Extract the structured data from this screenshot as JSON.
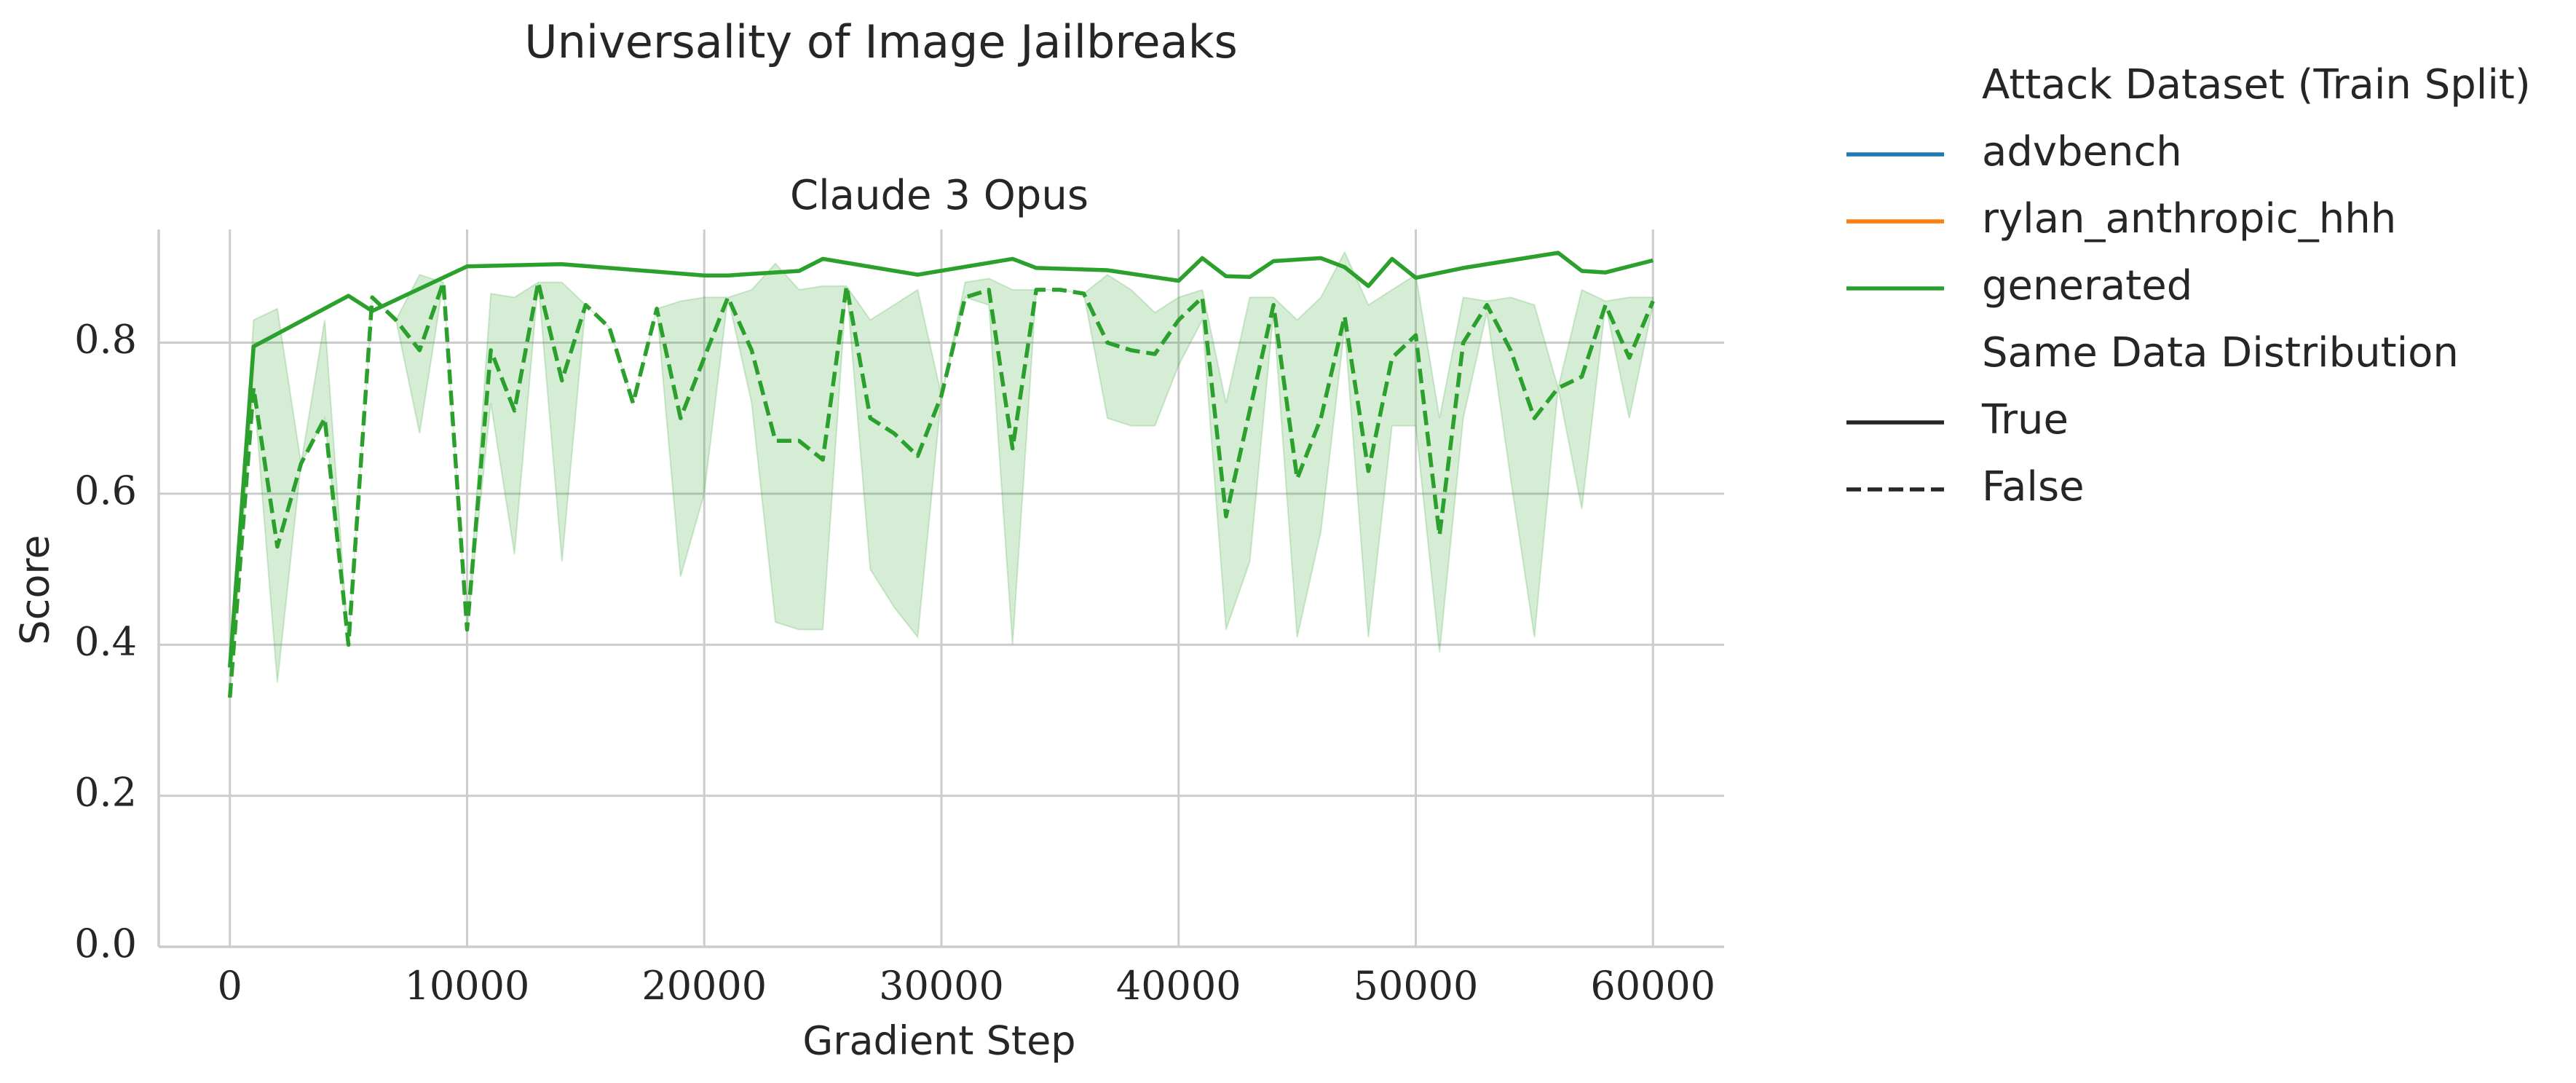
{
  "suptitle": "Universality of Image Jailbreaks",
  "chart_data": {
    "type": "line",
    "title": "Claude 3 Opus",
    "xlabel": "Gradient Step",
    "ylabel": "Score",
    "xlim": [
      -3000,
      63000
    ],
    "ylim": [
      0,
      0.95
    ],
    "xticks": [
      0,
      10000,
      20000,
      30000,
      40000,
      50000,
      60000
    ],
    "xtick_labels": [
      "0",
      "10000",
      "20000",
      "30000",
      "40000",
      "50000",
      "60000"
    ],
    "yticks": [
      0.0,
      0.2,
      0.4,
      0.6,
      0.8
    ],
    "ytick_labels": [
      "0.0",
      "0.2",
      "0.4",
      "0.6",
      "0.8"
    ],
    "grid": true,
    "legend_position": "outside-right",
    "legend": {
      "hue_title": "Attack Dataset (Train Split)",
      "hue_entries": [
        {
          "label": "advbench",
          "color": "#1f77b4"
        },
        {
          "label": "rylan_anthropic_hhh",
          "color": "#ff7f0e"
        },
        {
          "label": "generated",
          "color": "#2ca02c"
        }
      ],
      "style_title": "Same Data Distribution",
      "style_entries": [
        {
          "label": "True",
          "dash": "solid"
        },
        {
          "label": "False",
          "dash": "dashed"
        }
      ]
    },
    "series": [
      {
        "dataset": "generated",
        "same_distribution": "True",
        "color": "#2ca02c",
        "x": [
          0,
          1000,
          5000,
          6000,
          10000,
          14000,
          20000,
          21000,
          24000,
          25000,
          29000,
          33000,
          34000,
          37000,
          40000,
          41000,
          42000,
          43000,
          44000,
          46000,
          47000,
          48000,
          49000,
          50000,
          52000,
          56000,
          57000,
          58000,
          60000
        ],
        "y": [
          0.37,
          0.795,
          0.862,
          0.842,
          0.901,
          0.904,
          0.889,
          0.889,
          0.895,
          0.911,
          0.89,
          0.911,
          0.899,
          0.896,
          0.882,
          0.912,
          0.888,
          0.887,
          0.908,
          0.912,
          0.9,
          0.875,
          0.911,
          0.886,
          0.899,
          0.919,
          0.895,
          0.893,
          0.909
        ]
      },
      {
        "dataset": "generated",
        "same_distribution": "False",
        "color": "#2ca02c",
        "x": [
          0,
          1000,
          2000,
          3000,
          4000,
          5000,
          6000,
          7000,
          8000,
          9000,
          10000,
          11000,
          12000,
          13000,
          14000,
          15000,
          16000,
          17000,
          18000,
          19000,
          20000,
          21000,
          22000,
          23000,
          24000,
          25000,
          26000,
          27000,
          28000,
          29000,
          30000,
          31000,
          32000,
          33000,
          34000,
          35000,
          36000,
          37000,
          38000,
          39000,
          40000,
          41000,
          42000,
          43000,
          44000,
          45000,
          46000,
          47000,
          48000,
          49000,
          50000,
          51000,
          52000,
          53000,
          54000,
          55000,
          56000,
          57000,
          58000,
          59000,
          60000
        ],
        "y": [
          0.33,
          0.74,
          0.53,
          0.64,
          0.7,
          0.4,
          0.86,
          0.83,
          0.79,
          0.88,
          0.42,
          0.79,
          0.71,
          0.88,
          0.75,
          0.85,
          0.82,
          0.72,
          0.845,
          0.7,
          0.78,
          0.86,
          0.79,
          0.67,
          0.67,
          0.645,
          0.875,
          0.7,
          0.68,
          0.65,
          0.73,
          0.86,
          0.87,
          0.66,
          0.87,
          0.87,
          0.865,
          0.8,
          0.79,
          0.785,
          0.83,
          0.86,
          0.57,
          0.71,
          0.85,
          0.62,
          0.7,
          0.835,
          0.63,
          0.78,
          0.81,
          0.545,
          0.8,
          0.85,
          0.79,
          0.7,
          0.74,
          0.755,
          0.85,
          0.78,
          0.855
        ],
        "ci_low": [
          0.33,
          0.74,
          0.35,
          0.64,
          0.7,
          0.4,
          0.86,
          0.83,
          0.68,
          0.88,
          0.42,
          0.72,
          0.52,
          0.88,
          0.51,
          0.85,
          0.82,
          0.72,
          0.845,
          0.49,
          0.6,
          0.86,
          0.72,
          0.43,
          0.42,
          0.42,
          0.875,
          0.5,
          0.45,
          0.41,
          0.73,
          0.86,
          0.85,
          0.4,
          0.87,
          0.87,
          0.865,
          0.7,
          0.69,
          0.69,
          0.77,
          0.83,
          0.42,
          0.51,
          0.84,
          0.41,
          0.55,
          0.82,
          0.41,
          0.69,
          0.69,
          0.39,
          0.7,
          0.84,
          0.62,
          0.41,
          0.74,
          0.58,
          0.85,
          0.7,
          0.85
        ],
        "ci_high": [
          0.33,
          0.83,
          0.845,
          0.64,
          0.83,
          0.4,
          0.86,
          0.83,
          0.89,
          0.88,
          0.42,
          0.865,
          0.86,
          0.88,
          0.88,
          0.85,
          0.82,
          0.72,
          0.845,
          0.855,
          0.86,
          0.86,
          0.87,
          0.905,
          0.87,
          0.875,
          0.875,
          0.83,
          0.85,
          0.87,
          0.73,
          0.88,
          0.885,
          0.87,
          0.87,
          0.87,
          0.865,
          0.89,
          0.87,
          0.84,
          0.86,
          0.87,
          0.72,
          0.86,
          0.86,
          0.83,
          0.86,
          0.92,
          0.85,
          0.87,
          0.89,
          0.7,
          0.86,
          0.855,
          0.86,
          0.85,
          0.74,
          0.87,
          0.855,
          0.86,
          0.86
        ]
      }
    ]
  }
}
